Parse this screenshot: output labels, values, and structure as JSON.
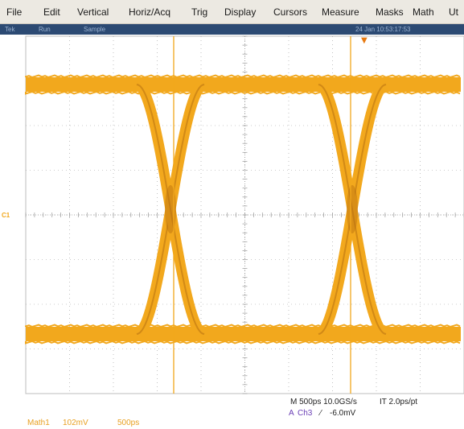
{
  "menu": {
    "items": [
      "File",
      "Edit",
      "Vertical",
      "Horiz/Acq",
      "Trig",
      "Display",
      "Cursors",
      "Measure",
      "Masks",
      "Math",
      "Ut"
    ]
  },
  "status_bar": {
    "left_1": "Tek",
    "left_2": "Run",
    "left_3": "Sample",
    "right": "24 Jan 10:53:17:53"
  },
  "markers": {
    "channel_left": "C1",
    "trigger_arrow": "▼"
  },
  "readout": {
    "timebase": "M 500ps 10.0GS/s",
    "interp": "IT 2.0ps/pt",
    "trigger_source": "A",
    "trigger_channel": "Ch3",
    "trigger_slope": "⁄",
    "trigger_level": "-6.0mV",
    "math_label": "Math1",
    "math_volts": "102mV",
    "math_time": "500ps"
  },
  "colors": {
    "trace": "#f2a81d",
    "trace_dark": "#b76f10",
    "grid": "#9a9a9a",
    "cursor": "#f2a81d",
    "status_bar": "#2c4a73",
    "menubar": "#ece9e2"
  },
  "display": {
    "grid_divisions_x": 10,
    "grid_divisions_y": 8,
    "style": "eye diagram"
  }
}
